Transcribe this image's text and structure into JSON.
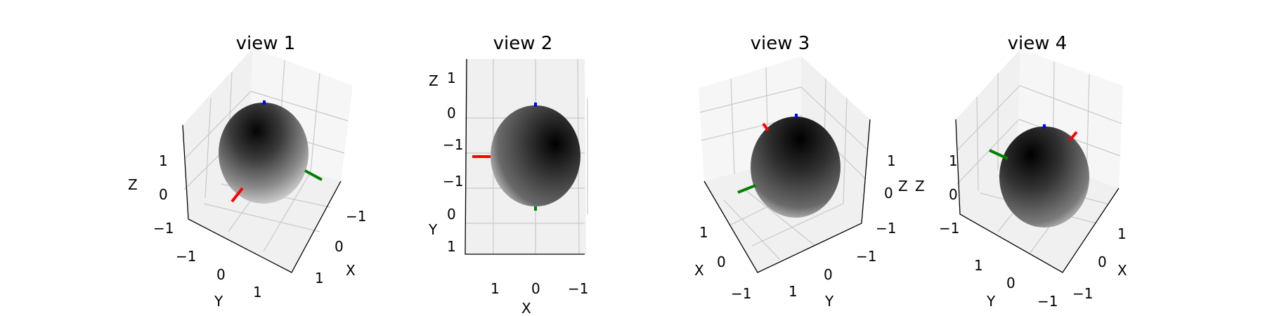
{
  "chart_data": [
    {
      "type": "surface3d",
      "title": "view 1",
      "xlabel": "X",
      "ylabel": "Y",
      "zlabel": "Z",
      "xticks": [
        "−1",
        "0",
        "1"
      ],
      "yticks": [
        "−1",
        "0",
        "1"
      ],
      "zticks": [
        "1",
        "0",
        "−1"
      ],
      "xlim": [
        -1.5,
        1.5
      ],
      "ylim": [
        -1.5,
        1.5
      ],
      "zlim": [
        -1.5,
        1.5
      ],
      "surface": "sphere",
      "colormap": "gray",
      "grid": true,
      "axis_colors": {
        "x": "#ff0000",
        "y": "#008000",
        "z": "#0000ff"
      }
    },
    {
      "type": "surface3d",
      "title": "view 2",
      "xlabel": "X",
      "ylabel": "Y",
      "zlabel": "Z",
      "xticks": [
        "1",
        "0",
        "−1"
      ],
      "yticks": [
        "−1",
        "0",
        "1"
      ],
      "zticks": [
        "1",
        "0",
        "−1"
      ],
      "xlim": [
        -1.5,
        1.5
      ],
      "ylim": [
        -1.5,
        1.5
      ],
      "zlim": [
        -1.5,
        1.5
      ],
      "surface": "sphere",
      "colormap": "gray",
      "grid": true,
      "axis_colors": {
        "x": "#ff0000",
        "y": "#008000",
        "z": "#0000ff"
      }
    },
    {
      "type": "surface3d",
      "title": "view 3",
      "xlabel": "X",
      "ylabel": "Y",
      "zlabel": "Z",
      "xticks": [
        "1",
        "0",
        "−1"
      ],
      "yticks": [
        "1",
        "0",
        "−1"
      ],
      "zticks": [
        "1",
        "0",
        "−1"
      ],
      "xlim": [
        -1.5,
        1.5
      ],
      "ylim": [
        -1.5,
        1.5
      ],
      "zlim": [
        -1.5,
        1.5
      ],
      "surface": "sphere",
      "colormap": "gray",
      "grid": true,
      "axis_colors": {
        "x": "#ff0000",
        "y": "#008000",
        "z": "#0000ff"
      }
    },
    {
      "type": "surface3d",
      "title": "view 4",
      "xlabel": "X",
      "ylabel": "Y",
      "zlabel": "Z",
      "xticks": [
        "1",
        "0",
        "−1"
      ],
      "yticks": [
        "1",
        "0",
        "−1"
      ],
      "zticks": [
        "1",
        "0",
        "−1"
      ],
      "xlim": [
        -1.5,
        1.5
      ],
      "ylim": [
        -1.5,
        1.5
      ],
      "zlim": [
        -1.5,
        1.5
      ],
      "surface": "sphere",
      "colormap": "gray",
      "grid": true,
      "axis_colors": {
        "x": "#ff0000",
        "y": "#008000",
        "z": "#0000ff"
      }
    }
  ]
}
